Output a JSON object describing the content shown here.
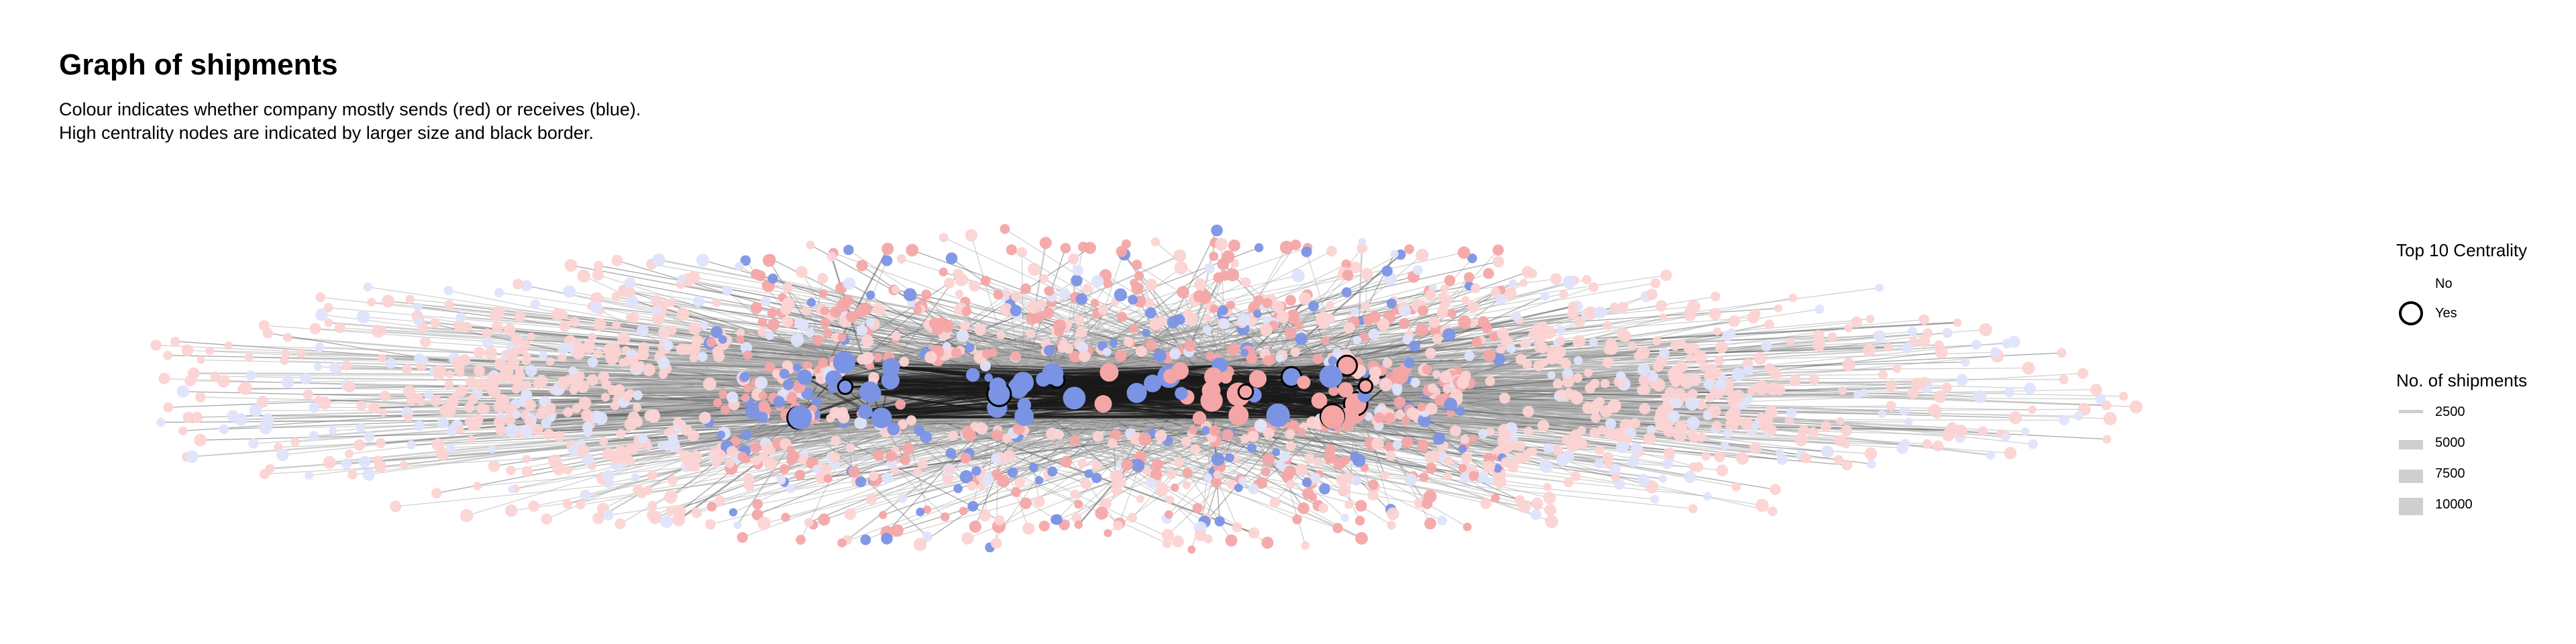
{
  "title": "Graph of shipments",
  "subtitle_line1": "Colour indicates whether company mostly sends (red) or receives (blue).",
  "subtitle_line2": "High centrality nodes are indicated by larger size and black border.",
  "legend": {
    "centrality": {
      "title": "Top 10 Centrality",
      "items": [
        "No",
        "Yes"
      ]
    },
    "shipments": {
      "title": "No. of shipments",
      "items": [
        "2500",
        "5000",
        "7500",
        "10000"
      ]
    }
  },
  "colors": {
    "send": "#f4a6a6",
    "receive": "#7b93e4",
    "send_light": "#fcd3d3",
    "receive_light": "#dfe4fb",
    "edge": "#a8a8a8",
    "legend_bar": "#cfcfcf"
  }
}
